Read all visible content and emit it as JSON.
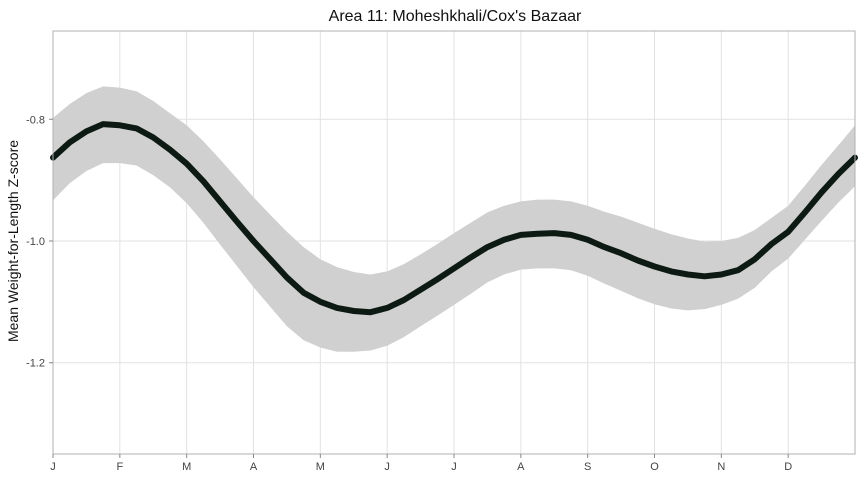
{
  "chart_data": {
    "type": "line",
    "title": "Area 11: Moheshkhali/Cox's Bazaar",
    "xlabel": "",
    "ylabel": "Mean Weight-for-Length Z-score",
    "x_tick_labels": [
      "J",
      "F",
      "M",
      "A",
      "M",
      "J",
      "J",
      "A",
      "S",
      "O",
      "N",
      "D"
    ],
    "y_ticks": [
      -0.8,
      -1.0,
      -1.2
    ],
    "y_tick_labels": [
      "-0.8",
      "-1.0",
      "-1.2"
    ],
    "xlim": [
      0,
      12
    ],
    "ylim": [
      -1.35,
      -0.655
    ],
    "grid": true,
    "colors": {
      "line": "#0d1a14",
      "band": "#cfd0cf",
      "grid": "#e2e2e2",
      "frame": "#b0b0b0"
    },
    "series": [
      {
        "x": [
          0,
          0.25,
          0.5,
          0.75,
          1,
          1.25,
          1.5,
          1.75,
          2,
          2.25,
          2.5,
          2.75,
          3,
          3.25,
          3.5,
          3.75,
          4,
          4.25,
          4.5,
          4.75,
          5,
          5.25,
          5.5,
          5.75,
          6,
          6.25,
          6.5,
          6.75,
          7,
          7.25,
          7.5,
          7.75,
          8,
          8.25,
          8.5,
          8.75,
          9,
          9.25,
          9.5,
          9.75,
          10,
          10.25,
          10.5,
          10.75,
          11,
          11.25,
          11.5,
          11.75,
          12
        ],
        "y": [
          -0.863,
          -0.838,
          -0.82,
          -0.808,
          -0.81,
          -0.815,
          -0.83,
          -0.85,
          -0.873,
          -0.902,
          -0.935,
          -0.968,
          -1.0,
          -1.03,
          -1.06,
          -1.085,
          -1.1,
          -1.11,
          -1.115,
          -1.117,
          -1.11,
          -1.097,
          -1.08,
          -1.063,
          -1.045,
          -1.027,
          -1.01,
          -0.998,
          -0.99,
          -0.988,
          -0.987,
          -0.99,
          -0.998,
          -1.01,
          -1.02,
          -1.032,
          -1.042,
          -1.05,
          -1.055,
          -1.058,
          -1.055,
          -1.048,
          -1.03,
          -1.005,
          -0.985,
          -0.953,
          -0.92,
          -0.89,
          -0.863
        ],
        "lower": [
          -0.933,
          -0.905,
          -0.885,
          -0.872,
          -0.872,
          -0.876,
          -0.892,
          -0.912,
          -0.938,
          -0.97,
          -1.006,
          -1.041,
          -1.076,
          -1.108,
          -1.14,
          -1.163,
          -1.175,
          -1.182,
          -1.182,
          -1.18,
          -1.172,
          -1.158,
          -1.14,
          -1.123,
          -1.105,
          -1.087,
          -1.068,
          -1.055,
          -1.047,
          -1.045,
          -1.045,
          -1.048,
          -1.057,
          -1.07,
          -1.082,
          -1.094,
          -1.104,
          -1.111,
          -1.114,
          -1.112,
          -1.105,
          -1.095,
          -1.077,
          -1.05,
          -1.029,
          -0.998,
          -0.967,
          -0.937,
          -0.91
        ],
        "upper": [
          -0.798,
          -0.775,
          -0.757,
          -0.746,
          -0.748,
          -0.754,
          -0.77,
          -0.79,
          -0.81,
          -0.836,
          -0.866,
          -0.897,
          -0.928,
          -0.957,
          -0.985,
          -1.01,
          -1.03,
          -1.043,
          -1.051,
          -1.055,
          -1.05,
          -1.038,
          -1.022,
          -1.005,
          -0.987,
          -0.97,
          -0.953,
          -0.942,
          -0.935,
          -0.932,
          -0.932,
          -0.935,
          -0.942,
          -0.952,
          -0.96,
          -0.97,
          -0.98,
          -0.989,
          -0.996,
          -1.001,
          -1.0,
          -0.995,
          -0.982,
          -0.962,
          -0.942,
          -0.909,
          -0.875,
          -0.843,
          -0.81
        ]
      }
    ]
  }
}
